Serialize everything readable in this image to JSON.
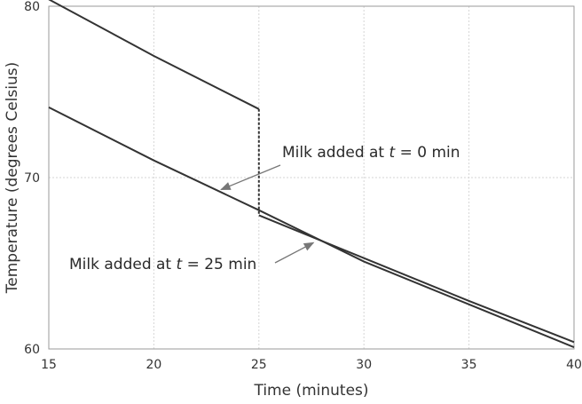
{
  "chart_data": {
    "type": "line",
    "xlabel": "Time (minutes)",
    "ylabel": "Temperature (degrees Celsius)",
    "xlim": [
      15,
      40
    ],
    "ylim": [
      60,
      80
    ],
    "x_ticks": [
      "15",
      "20",
      "25",
      "30",
      "35",
      "40"
    ],
    "y_ticks": [
      "60",
      "70",
      "80"
    ],
    "x_tick_values": [
      15,
      20,
      25,
      30,
      35,
      40
    ],
    "y_tick_values": [
      60,
      70,
      80
    ],
    "grid": true,
    "series": [
      {
        "x": [
          15,
          20,
          25,
          25,
          30,
          35,
          40
        ],
        "y": [
          80.4,
          77.1,
          74.0,
          67.8,
          65.3,
          62.8,
          60.4
        ]
      },
      {
        "x": [
          15,
          20,
          25,
          30,
          35,
          40
        ],
        "y": [
          74.1,
          71.0,
          68.1,
          65.1,
          62.6,
          60.1
        ]
      }
    ],
    "annotations": [
      {
        "parts": [
          "Milk added at ",
          "t",
          " = 0 min"
        ],
        "italic_part": 1,
        "arrow_to": {
          "x": 23.2,
          "y": 69.3
        }
      },
      {
        "parts": [
          "Milk added at ",
          "t",
          " = 25 min"
        ],
        "italic_part": 1,
        "arrow_to": {
          "x": 27.6,
          "y": 66.2
        }
      }
    ],
    "colors": {
      "line": "#333333",
      "grid": "#d6d6d6",
      "arrow": "#777777"
    }
  }
}
